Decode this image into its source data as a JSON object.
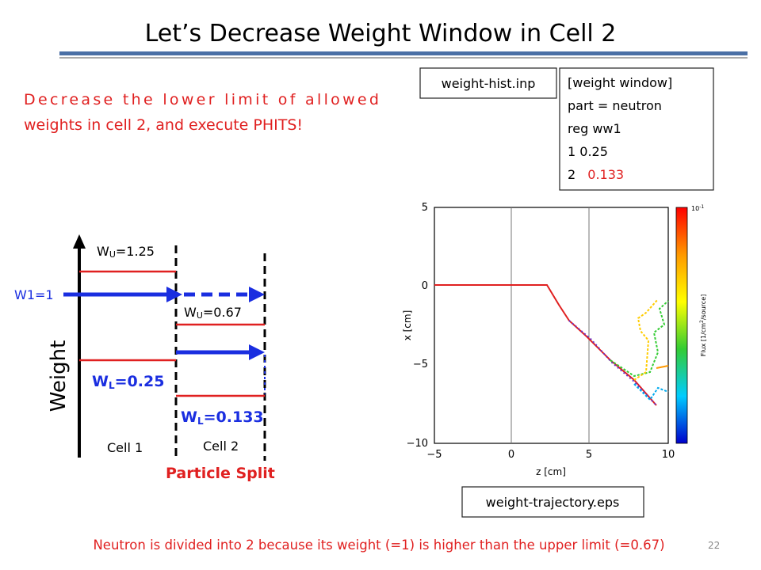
{
  "title": "Let’s Decrease Weight Window in Cell 2",
  "description": [
    "Decrease the lower limit of allowed",
    "weights in cell 2, and execute PHITS!"
  ],
  "input_file": "weight-hist.inp",
  "input_box": {
    "lines": [
      "[weight window]",
      "part = neutron",
      "reg ww1",
      "1  0.25"
    ],
    "last_line": {
      "cell": "2",
      "value": "0.133"
    }
  },
  "diagram": {
    "axis_label": "Weight",
    "w1": "W1=1",
    "wu_cell1": {
      "base": "W",
      "sub": "U",
      "rest": "=1.25"
    },
    "wu_cell2": {
      "base": "W",
      "sub": "U",
      "rest": "=0.67"
    },
    "wl_cell1": {
      "base": "W",
      "sub": "L",
      "rest": "=0.25"
    },
    "wl_cell2": {
      "base": "W",
      "sub": "L",
      "rest": "=0.133"
    },
    "cell1": "Cell 1",
    "cell2": "Cell 2",
    "split_label": "Particle Split"
  },
  "plot": {
    "x_label": "z [cm]",
    "y_label": "x [cm]",
    "x_ticks": [
      "−5",
      "0",
      "5",
      "10"
    ],
    "y_ticks": [
      "5",
      "0",
      "−5",
      "−10"
    ],
    "colorbar_top": {
      "base": "10",
      "sup": "-1"
    },
    "colorbar_label": {
      "before": "Flux [1/cm",
      "sup": "2",
      "after": "/source]"
    }
  },
  "plot_file": "weight-trajectory.eps",
  "footer": "Neutron is divided into 2 because its weight (=1) is higher than the upper limit (=0.67)",
  "page_number": "22"
}
